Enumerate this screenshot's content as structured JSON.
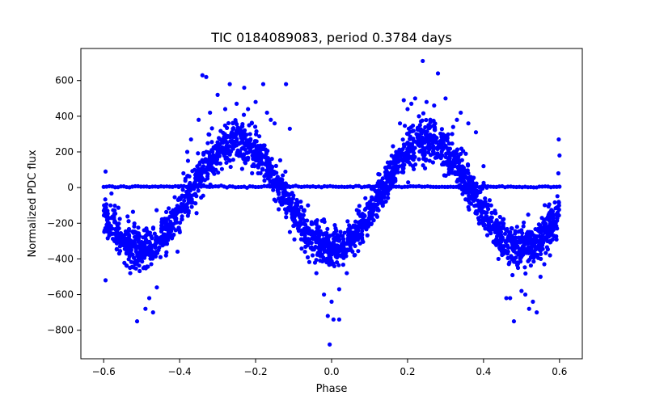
{
  "chart_data": {
    "type": "scatter",
    "title": "TIC 0184089083, period 0.3784 days",
    "xlabel": "Phase",
    "ylabel": "Normalized PDC flux",
    "xlim": [
      -0.66,
      0.66
    ],
    "ylim": [
      -960,
      780
    ],
    "xticks": [
      -0.6,
      -0.4,
      -0.2,
      0.0,
      0.2,
      0.4,
      0.6
    ],
    "xtick_labels": [
      "−0.6",
      "−0.4",
      "−0.2",
      "0.0",
      "0.2",
      "0.4",
      "0.6"
    ],
    "yticks": [
      -800,
      -600,
      -400,
      -200,
      0,
      200,
      400,
      600
    ],
    "ytick_labels": [
      "−800",
      "−600",
      "−400",
      "−200",
      "0",
      "200",
      "400",
      "600"
    ],
    "grid": false,
    "legend": "none",
    "marker_color": "#0000ff",
    "phase_range": [
      -0.6,
      0.6
    ],
    "trend_model": "flux ≈ −300·cos(4π·phase) − 40, minima near phase −0.5, 0.0, 0.5 (~−350), maxima near ±0.25 (~+250)",
    "flat_band": {
      "y": 5,
      "x_range": [
        -0.6,
        0.6
      ]
    },
    "series": [
      {
        "points": [
          [
            -0.595,
            90
          ],
          [
            -0.59,
            -130
          ],
          [
            -0.585,
            -220
          ],
          [
            -0.57,
            -300
          ],
          [
            -0.56,
            -280
          ],
          [
            -0.595,
            -520
          ],
          [
            -0.54,
            -370
          ],
          [
            -0.53,
            -480
          ],
          [
            -0.52,
            -420
          ],
          [
            -0.512,
            -750
          ],
          [
            -0.5,
            -330
          ],
          [
            -0.49,
            -680
          ],
          [
            -0.48,
            -620
          ],
          [
            -0.47,
            -700
          ],
          [
            -0.46,
            -560
          ],
          [
            -0.45,
            -300
          ],
          [
            -0.43,
            -220
          ],
          [
            -0.41,
            -120
          ],
          [
            -0.39,
            80
          ],
          [
            -0.38,
            200
          ],
          [
            -0.37,
            270
          ],
          [
            -0.35,
            380
          ],
          [
            -0.34,
            630
          ],
          [
            -0.33,
            620
          ],
          [
            -0.32,
            420
          ],
          [
            -0.3,
            520
          ],
          [
            -0.28,
            440
          ],
          [
            -0.268,
            580
          ],
          [
            -0.26,
            360
          ],
          [
            -0.25,
            470
          ],
          [
            -0.24,
            300
          ],
          [
            -0.23,
            560
          ],
          [
            -0.22,
            440
          ],
          [
            -0.2,
            480
          ],
          [
            -0.18,
            580
          ],
          [
            -0.17,
            420
          ],
          [
            -0.16,
            380
          ],
          [
            -0.15,
            360
          ],
          [
            -0.12,
            580
          ],
          [
            -0.11,
            330
          ],
          [
            -0.11,
            -40
          ],
          [
            -0.105,
            -80
          ],
          [
            -0.1,
            -130
          ],
          [
            -0.09,
            -200
          ],
          [
            -0.08,
            -290
          ],
          [
            -0.07,
            -360
          ],
          [
            -0.06,
            -230
          ],
          [
            -0.05,
            -380
          ],
          [
            -0.04,
            -480
          ],
          [
            -0.03,
            -410
          ],
          [
            -0.02,
            -600
          ],
          [
            -0.01,
            -720
          ],
          [
            -0.005,
            -880
          ],
          [
            0.0,
            -640
          ],
          [
            0.005,
            -740
          ],
          [
            0.02,
            -740
          ],
          [
            0.02,
            -570
          ],
          [
            0.04,
            -480
          ],
          [
            0.06,
            -380
          ],
          [
            0.08,
            -280
          ],
          [
            0.09,
            -220
          ],
          [
            0.11,
            -130
          ],
          [
            0.12,
            -30
          ],
          [
            0.13,
            -80
          ],
          [
            0.15,
            80
          ],
          [
            0.17,
            200
          ],
          [
            0.18,
            360
          ],
          [
            0.19,
            490
          ],
          [
            0.2,
            440
          ],
          [
            0.21,
            470
          ],
          [
            0.22,
            500
          ],
          [
            0.23,
            400
          ],
          [
            0.24,
            710
          ],
          [
            0.25,
            480
          ],
          [
            0.26,
            380
          ],
          [
            0.27,
            460
          ],
          [
            0.28,
            640
          ],
          [
            0.3,
            500
          ],
          [
            0.32,
            340
          ],
          [
            0.34,
            420
          ],
          [
            0.36,
            360
          ],
          [
            0.38,
            310
          ],
          [
            0.4,
            120
          ],
          [
            0.42,
            -100
          ],
          [
            0.43,
            -130
          ],
          [
            0.44,
            -200
          ],
          [
            0.45,
            -280
          ],
          [
            0.46,
            -620
          ],
          [
            0.47,
            -620
          ],
          [
            0.48,
            -750
          ],
          [
            0.49,
            -420
          ],
          [
            0.5,
            -580
          ],
          [
            0.51,
            -600
          ],
          [
            0.52,
            -680
          ],
          [
            0.53,
            -640
          ],
          [
            0.54,
            -700
          ],
          [
            0.55,
            -500
          ],
          [
            0.56,
            -430
          ],
          [
            0.575,
            -380
          ],
          [
            0.585,
            -270
          ],
          [
            0.59,
            -200
          ],
          [
            0.595,
            -140
          ],
          [
            0.598,
            270
          ],
          [
            0.6,
            180
          ],
          [
            0.597,
            80
          ],
          [
            -0.378,
            150
          ],
          [
            -0.33,
            200
          ],
          [
            -0.21,
            360
          ],
          [
            0.202,
            300
          ],
          [
            0.33,
            380
          ]
        ]
      }
    ]
  }
}
